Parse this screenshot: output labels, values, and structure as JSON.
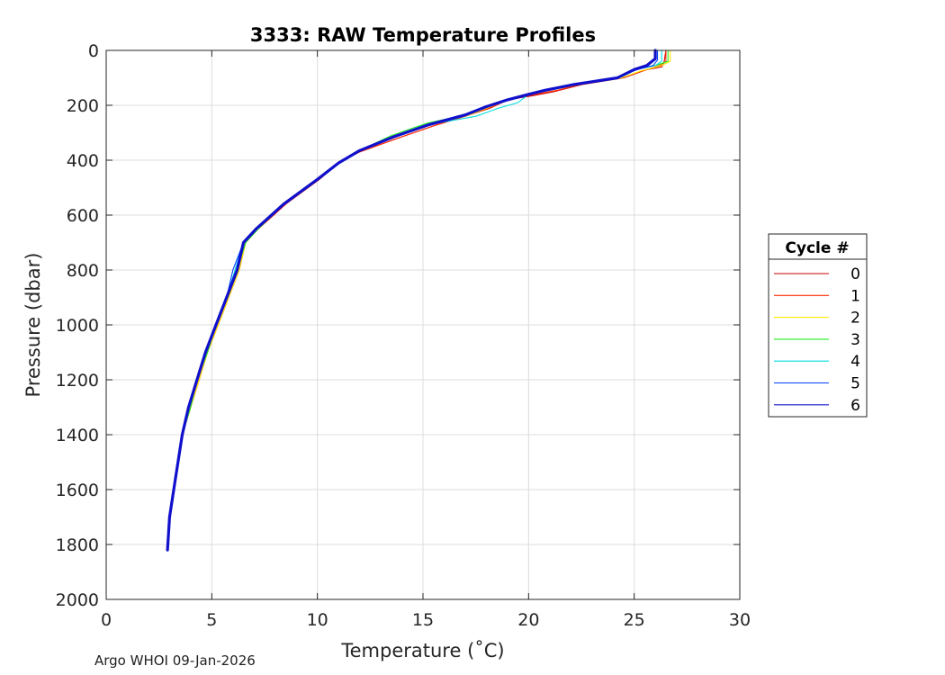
{
  "chart_data": {
    "type": "line",
    "title": "3333: RAW Temperature Profiles",
    "xlabel": "Temperature (˚C)",
    "ylabel": "Pressure (dbar)",
    "xlim": [
      0,
      30
    ],
    "ylim": [
      2000,
      0
    ],
    "y_reversed": true,
    "grid": true,
    "xticks": [
      0,
      5,
      10,
      15,
      20,
      25,
      30
    ],
    "yticks": [
      0,
      200,
      400,
      600,
      800,
      1000,
      1200,
      1400,
      1600,
      1800,
      2000
    ],
    "legend": {
      "title": "Cycle #",
      "placement": "outside-right"
    },
    "series": [
      {
        "name": "0",
        "color": "#cc0000",
        "x": [
          26.5,
          26.4,
          26.3,
          25.6,
          24.5,
          22.5,
          21.2,
          20.2,
          19.0,
          18.2,
          17.2,
          15.5,
          13.8,
          12.0,
          11.0,
          10.0,
          8.5,
          7.2,
          6.6,
          6.3,
          5.8,
          5.3,
          4.8,
          4.4,
          4.0,
          3.6,
          3.3,
          3.0,
          2.9
        ],
        "y": [
          0,
          50,
          60,
          70,
          100,
          125,
          150,
          165,
          180,
          210,
          235,
          275,
          320,
          370,
          410,
          470,
          560,
          650,
          700,
          800,
          900,
          1000,
          1100,
          1200,
          1300,
          1400,
          1550,
          1700,
          1820
        ]
      },
      {
        "name": "1",
        "color": "#ff2a00",
        "x": [
          26.5,
          26.5,
          26.2,
          25.4,
          24.4,
          22.4,
          21.4,
          20.3,
          19.2,
          18.3,
          17.2,
          15.5,
          13.8,
          12.0,
          11.0,
          10.1,
          8.5,
          7.2,
          6.6,
          6.3,
          5.8,
          5.3,
          4.8,
          4.4,
          4.0,
          3.6,
          3.3,
          3.0,
          2.9
        ],
        "y": [
          0,
          40,
          55,
          75,
          100,
          125,
          145,
          160,
          175,
          205,
          235,
          275,
          320,
          370,
          410,
          470,
          560,
          650,
          700,
          800,
          900,
          1000,
          1100,
          1200,
          1300,
          1400,
          1550,
          1700,
          1820
        ]
      },
      {
        "name": "2",
        "color": "#ffee00",
        "x": [
          26.7,
          26.7,
          26.3,
          25.3,
          24.4,
          22.3,
          21.0,
          20.0,
          19.0,
          18.2,
          17.2,
          15.4,
          13.7,
          12.0,
          11.0,
          10.0,
          8.4,
          7.2,
          6.6,
          6.3,
          5.8,
          5.3,
          4.8,
          4.4,
          4.0,
          3.6,
          3.3,
          3.0,
          2.9
        ],
        "y": [
          0,
          40,
          55,
          75,
          100,
          125,
          145,
          160,
          180,
          205,
          235,
          270,
          315,
          365,
          410,
          470,
          560,
          650,
          700,
          800,
          900,
          1000,
          1100,
          1200,
          1300,
          1400,
          1550,
          1700,
          1820
        ]
      },
      {
        "name": "3",
        "color": "#22ee22",
        "x": [
          26.6,
          26.6,
          26.0,
          25.0,
          24.3,
          22.3,
          21.0,
          20.0,
          19.0,
          18.0,
          17.0,
          15.2,
          13.5,
          12.0,
          11.0,
          10.0,
          8.4,
          7.2,
          6.6,
          6.2,
          5.7,
          5.2,
          4.8,
          4.3,
          4.0,
          3.6,
          3.3,
          3.0,
          2.9
        ],
        "y": [
          0,
          40,
          55,
          70,
          100,
          125,
          145,
          160,
          180,
          205,
          235,
          265,
          310,
          365,
          410,
          470,
          560,
          650,
          700,
          800,
          900,
          1000,
          1100,
          1200,
          1300,
          1400,
          1550,
          1700,
          1820
        ]
      },
      {
        "name": "4",
        "color": "#00dddd",
        "x": [
          26.3,
          26.3,
          26.0,
          25.1,
          24.3,
          22.2,
          21.0,
          20.0,
          19.5,
          18.6,
          17.5,
          15.3,
          13.6,
          12.0,
          11.0,
          10.0,
          8.4,
          7.1,
          6.5,
          6.1,
          5.7,
          5.2,
          4.7,
          4.3,
          3.9,
          3.6,
          3.3,
          3.0,
          2.9
        ],
        "y": [
          0,
          40,
          55,
          70,
          100,
          125,
          145,
          160,
          190,
          210,
          240,
          270,
          315,
          365,
          410,
          470,
          560,
          650,
          700,
          800,
          900,
          1000,
          1100,
          1200,
          1300,
          1400,
          1550,
          1700,
          1820
        ]
      },
      {
        "name": "5",
        "color": "#0044ff",
        "x": [
          26.1,
          26.1,
          25.9,
          25.1,
          24.2,
          22.2,
          21.0,
          20.0,
          19.0,
          18.0,
          17.0,
          15.3,
          13.6,
          12.0,
          11.0,
          10.0,
          8.4,
          7.1,
          6.5,
          6.0,
          5.7,
          5.2,
          4.7,
          4.3,
          3.9,
          3.6,
          3.3,
          3.0,
          2.9
        ],
        "y": [
          0,
          35,
          55,
          70,
          100,
          125,
          145,
          160,
          180,
          205,
          235,
          270,
          315,
          365,
          410,
          470,
          560,
          650,
          700,
          800,
          900,
          1000,
          1100,
          1200,
          1300,
          1400,
          1550,
          1700,
          1820
        ]
      },
      {
        "name": "6",
        "color": "#1010cc",
        "x": [
          26.0,
          26.0,
          25.6,
          25.0,
          24.2,
          22.1,
          20.8,
          20.0,
          19.0,
          18.0,
          17.0,
          15.3,
          13.6,
          12.0,
          11.0,
          10.0,
          8.4,
          7.1,
          6.5,
          6.2,
          5.7,
          5.2,
          4.7,
          4.3,
          3.9,
          3.6,
          3.3,
          3.0,
          2.9
        ],
        "y": [
          0,
          30,
          55,
          70,
          100,
          125,
          145,
          160,
          180,
          205,
          235,
          270,
          315,
          365,
          410,
          470,
          560,
          650,
          700,
          800,
          900,
          1000,
          1100,
          1200,
          1300,
          1400,
          1550,
          1700,
          1820
        ]
      }
    ]
  },
  "footer": "Argo WHOI 09-Jan-2026"
}
